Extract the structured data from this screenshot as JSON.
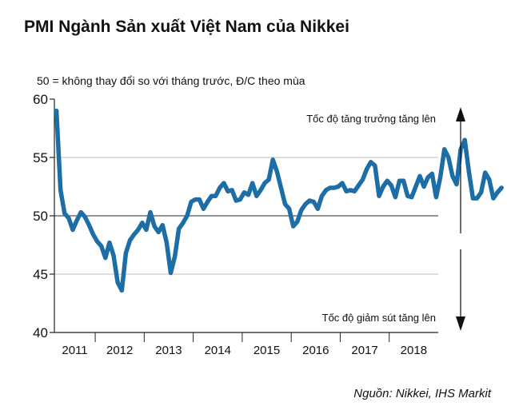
{
  "title": "PMI Ngành Sản xuất Việt Nam của Nikkei",
  "subtitle": "50 = không thay đổi so với tháng trước, Đ/C theo mùa",
  "source": "Nguồn: Nikkei, IHS Markit",
  "colors": {
    "line": "#1d6ea6",
    "axis": "#222222",
    "grid": "#bbbbbb"
  },
  "chart_data": {
    "type": "line",
    "title": "PMI Ngành Sản xuất Việt Nam của Nikkei",
    "ylim": [
      40,
      60
    ],
    "yticks": [
      40,
      45,
      50,
      55,
      60
    ],
    "gridlines": [
      45,
      50,
      55
    ],
    "reference_line": 50,
    "x_start": "2011-03",
    "x_end": "2018-12",
    "year_labels": [
      "2011",
      "2012",
      "2013",
      "2014",
      "2015",
      "2016",
      "2017",
      "2018"
    ],
    "annotations": {
      "up": "Tốc độ tăng trưởng tăng lên",
      "down": "Tốc độ giảm sút tăng lên"
    },
    "series": [
      {
        "name": "PMI",
        "values": [
          59.0,
          52.2,
          50.2,
          49.8,
          48.8,
          49.6,
          50.3,
          49.9,
          49.2,
          48.4,
          47.8,
          47.4,
          46.4,
          47.7,
          46.6,
          44.3,
          43.6,
          46.8,
          47.9,
          48.4,
          48.8,
          49.4,
          48.8,
          50.3,
          49.1,
          48.6,
          49.2,
          47.7,
          45.1,
          46.5,
          48.9,
          49.4,
          50.0,
          51.2,
          51.4,
          51.4,
          50.6,
          51.2,
          51.7,
          51.7,
          52.4,
          52.8,
          52.1,
          52.2,
          51.3,
          51.4,
          52.0,
          51.8,
          52.8,
          51.7,
          52.2,
          52.8,
          53.1,
          54.8,
          53.8,
          52.4,
          51.0,
          50.6,
          49.1,
          49.5,
          50.5,
          51.0,
          51.3,
          51.2,
          50.6,
          51.7,
          52.2,
          52.4,
          52.4,
          52.5,
          52.8,
          52.1,
          52.2,
          52.1,
          52.6,
          53.1,
          54.0,
          54.6,
          54.3,
          51.7,
          52.5,
          53.0,
          52.6,
          51.6,
          53.0,
          53.0,
          51.7,
          51.6,
          52.5,
          53.4,
          52.5,
          53.3,
          53.6,
          51.6,
          53.3,
          55.7,
          55.0,
          53.4,
          52.7,
          55.7,
          56.5,
          53.8,
          51.5,
          51.5,
          52.0,
          53.7,
          53.1,
          51.5,
          52.0,
          52.4
        ]
      }
    ]
  }
}
